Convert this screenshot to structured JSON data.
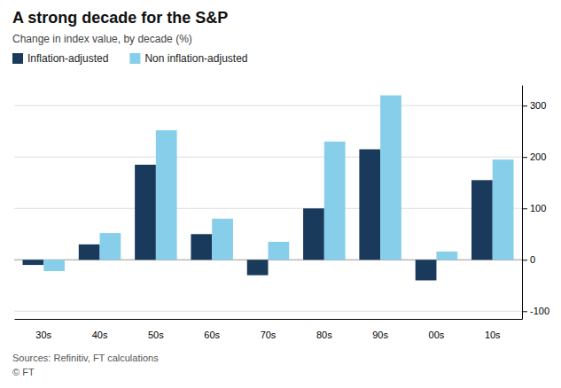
{
  "chart_data": {
    "type": "bar",
    "title": "A strong decade for the S&P",
    "subtitle": "Change in index value, by decade (%)",
    "categories": [
      "30s",
      "40s",
      "50s",
      "60s",
      "70s",
      "80s",
      "90s",
      "00s",
      "10s"
    ],
    "series": [
      {
        "name": "Inflation-adjusted",
        "color": "#1a3a5c",
        "values": [
          -10,
          30,
          185,
          50,
          -30,
          100,
          215,
          -40,
          155
        ]
      },
      {
        "name": "Non inflation-adjusted",
        "color": "#87ceeb",
        "values": [
          -22,
          52,
          252,
          80,
          35,
          230,
          320,
          16,
          195
        ]
      }
    ],
    "ylim": [
      -115,
      340
    ],
    "yticks": [
      -100,
      0,
      100,
      200,
      300
    ],
    "grid": true,
    "legend": "upper left",
    "annotations": [
      "Sources: Refinitiv, FT calculations",
      "© FT"
    ]
  }
}
